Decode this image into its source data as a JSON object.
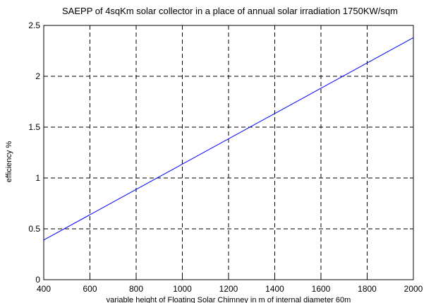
{
  "chart_data": {
    "type": "line",
    "title": "SAEPP of 4sqKm solar collector in a place of annual solar irradiation 1750KW/sqm",
    "xlabel": "variable height of Floating Solar Chimney in m of internal diameter 60m",
    "ylabel": "efficiency %",
    "xlim": [
      400,
      2000
    ],
    "ylim": [
      0,
      2.5
    ],
    "xticks": [
      "400",
      "600",
      "800",
      "1000",
      "1200",
      "1400",
      "1600",
      "1800",
      "2000"
    ],
    "yticks": [
      "0",
      "0.5",
      "1",
      "1.5",
      "2",
      "2.5"
    ],
    "grid": true,
    "series": [
      {
        "x": [
          400,
          2000
        ],
        "y": [
          0.39,
          2.38
        ],
        "color": "#0000ff"
      }
    ]
  }
}
